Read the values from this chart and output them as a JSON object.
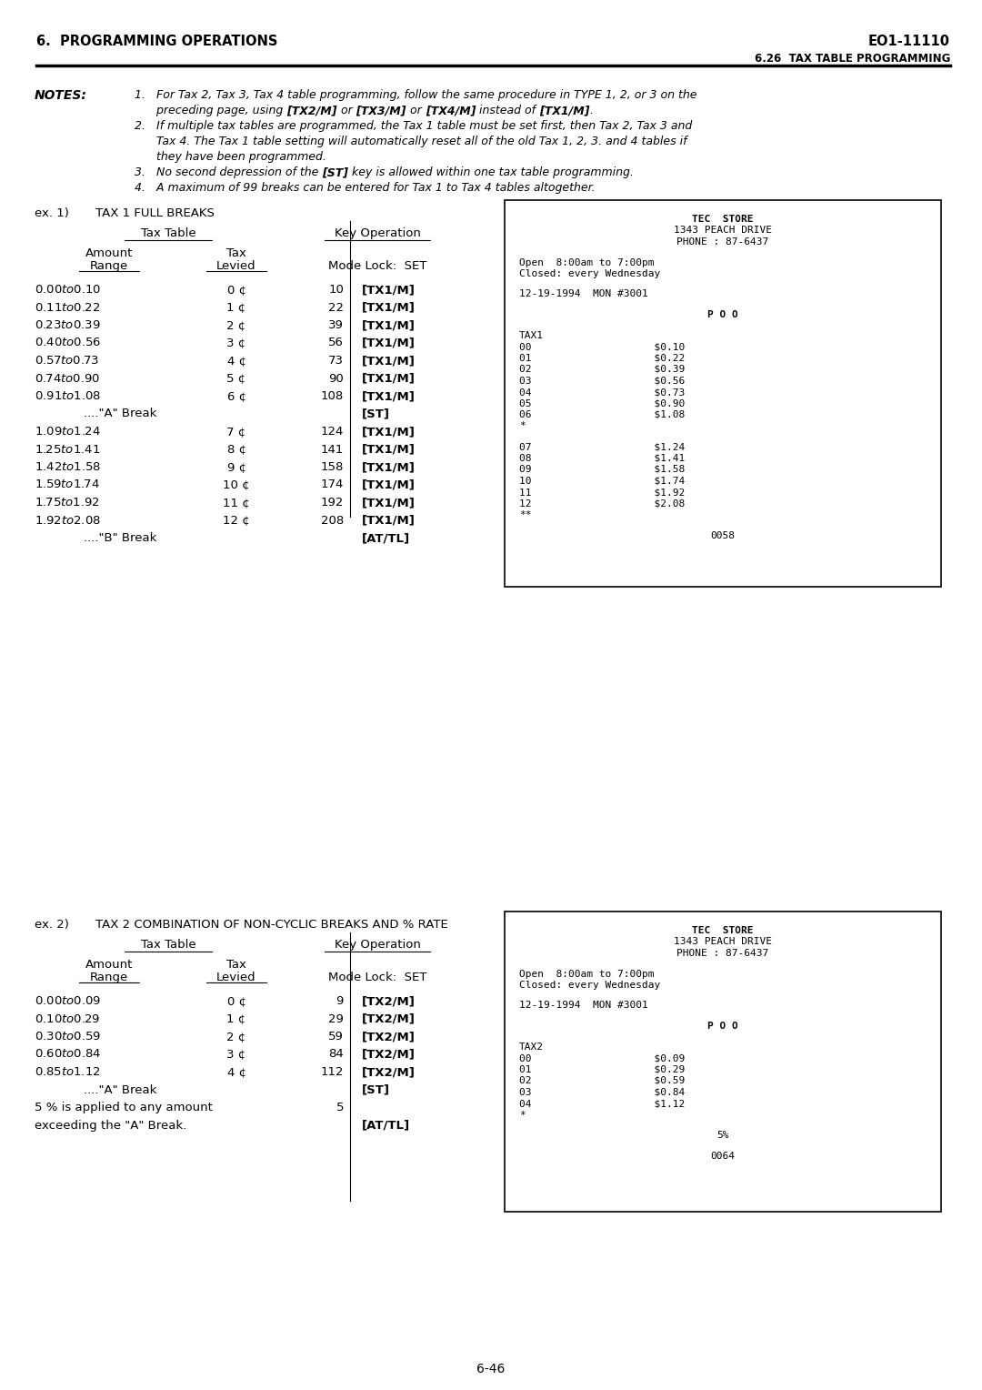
{
  "page_title_left": "6.  PROGRAMMING OPERATIONS",
  "page_title_right": "EO1-11110",
  "subtitle_right": "6.26  TAX TABLE PROGRAMMING",
  "notes_label": "NOTES:",
  "ex1_label": "ex. 1)",
  "ex1_title": "TAX 1 FULL BREAKS",
  "ex1_rows": [
    [
      "$0.00 to $0.10",
      "0 ¢",
      "10",
      "[TX1/M]"
    ],
    [
      "$0.11 to $0.22",
      "1 ¢",
      "22",
      "[TX1/M]"
    ],
    [
      "$0.23 to $0.39",
      "2 ¢",
      "39",
      "[TX1/M]"
    ],
    [
      "$0.40 to $0.56",
      "3 ¢",
      "56",
      "[TX1/M]"
    ],
    [
      "$0.57 to $0.73",
      "4 ¢",
      "73",
      "[TX1/M]"
    ],
    [
      "$0.74 to $0.90",
      "5 ¢",
      "90",
      "[TX1/M]"
    ],
    [
      "$0.91 to $1.08",
      "6 ¢",
      "108",
      "[TX1/M]"
    ],
    [
      "....\"A\" Break",
      "",
      "",
      "[ST]"
    ],
    [
      "$1.09 to $1.24",
      "7 ¢",
      "124",
      "[TX1/M]"
    ],
    [
      "$1.25 to $1.41",
      "8 ¢",
      "141",
      "[TX1/M]"
    ],
    [
      "$1.42 to $1.58",
      "9 ¢",
      "158",
      "[TX1/M]"
    ],
    [
      "$1.59 to $1.74",
      "10 ¢",
      "174",
      "[TX1/M]"
    ],
    [
      "$1.75 to $1.92",
      "11 ¢",
      "192",
      "[TX1/M]"
    ],
    [
      "$1.92 to $2.08",
      "12 ¢",
      "208",
      "[TX1/M]"
    ],
    [
      "....\"B\" Break",
      "",
      "",
      "[AT/TL]"
    ]
  ],
  "receipt1_lines": [
    [
      "TEC  STORE",
      "center",
      true
    ],
    [
      "1343 PEACH DRIVE",
      "center",
      false
    ],
    [
      "PHONE : 87-6437",
      "center",
      false
    ],
    [
      "",
      "center",
      false
    ],
    [
      "Open  8:00am to 7:00pm",
      "left",
      false
    ],
    [
      "Closed: every Wednesday",
      "left",
      false
    ],
    [
      "",
      "center",
      false
    ],
    [
      "12-19-1994  MON #3001",
      "left",
      false
    ],
    [
      "",
      "center",
      false
    ],
    [
      "P O O",
      "center",
      true
    ],
    [
      "",
      "center",
      false
    ],
    [
      "TAX1",
      "left",
      false
    ],
    [
      "00                    $0.10",
      "left",
      false
    ],
    [
      "01                    $0.22",
      "left",
      false
    ],
    [
      "02                    $0.39",
      "left",
      false
    ],
    [
      "03                    $0.56",
      "left",
      false
    ],
    [
      "04                    $0.73",
      "left",
      false
    ],
    [
      "05                    $0.90",
      "left",
      false
    ],
    [
      "06                    $1.08",
      "left",
      false
    ],
    [
      "*",
      "left",
      false
    ],
    [
      "",
      "center",
      false
    ],
    [
      "07                    $1.24",
      "left",
      false
    ],
    [
      "08                    $1.41",
      "left",
      false
    ],
    [
      "09                    $1.58",
      "left",
      false
    ],
    [
      "10                    $1.74",
      "left",
      false
    ],
    [
      "11                    $1.92",
      "left",
      false
    ],
    [
      "12                    $2.08",
      "left",
      false
    ],
    [
      "**",
      "left",
      false
    ],
    [
      "",
      "center",
      false
    ],
    [
      "0058",
      "center",
      false
    ]
  ],
  "ex2_label": "ex. 2)",
  "ex2_title": "TAX 2 COMBINATION OF NON-CYCLIC BREAKS AND % RATE",
  "ex2_rows": [
    [
      "$0.00 to $0.09",
      "0 ¢",
      "9",
      "[TX2/M]"
    ],
    [
      "$0.10 to $0.29",
      "1 ¢",
      "29",
      "[TX2/M]"
    ],
    [
      "$0.30 to $0.59",
      "2 ¢",
      "59",
      "[TX2/M]"
    ],
    [
      "$0.60 to $0.84",
      "3 ¢",
      "84",
      "[TX2/M]"
    ],
    [
      "$0.85 to $1.12",
      "4 ¢",
      "112",
      "[TX2/M]"
    ],
    [
      "....\"A\" Break",
      "",
      "",
      "[ST]"
    ],
    [
      "5 % is applied to any amount",
      "",
      "5",
      ""
    ],
    [
      "exceeding the \"A\" Break.",
      "",
      "",
      "[AT/TL]"
    ]
  ],
  "receipt2_lines": [
    [
      "TEC  STORE",
      "center",
      true
    ],
    [
      "1343 PEACH DRIVE",
      "center",
      false
    ],
    [
      "PHONE : 87-6437",
      "center",
      false
    ],
    [
      "",
      "center",
      false
    ],
    [
      "Open  8:00am to 7:00pm",
      "left",
      false
    ],
    [
      "Closed: every Wednesday",
      "left",
      false
    ],
    [
      "",
      "center",
      false
    ],
    [
      "12-19-1994  MON #3001",
      "left",
      false
    ],
    [
      "",
      "center",
      false
    ],
    [
      "P O O",
      "center",
      true
    ],
    [
      "",
      "center",
      false
    ],
    [
      "TAX2",
      "left",
      false
    ],
    [
      "00                    $0.09",
      "left",
      false
    ],
    [
      "01                    $0.29",
      "left",
      false
    ],
    [
      "02                    $0.59",
      "left",
      false
    ],
    [
      "03                    $0.84",
      "left",
      false
    ],
    [
      "04                    $1.12",
      "left",
      false
    ],
    [
      "*",
      "left",
      false
    ],
    [
      "",
      "center",
      false
    ],
    [
      "5%",
      "center",
      false
    ],
    [
      "",
      "center",
      false
    ],
    [
      "0064",
      "center",
      false
    ]
  ],
  "page_number": "6-46",
  "bg_color": "#ffffff"
}
